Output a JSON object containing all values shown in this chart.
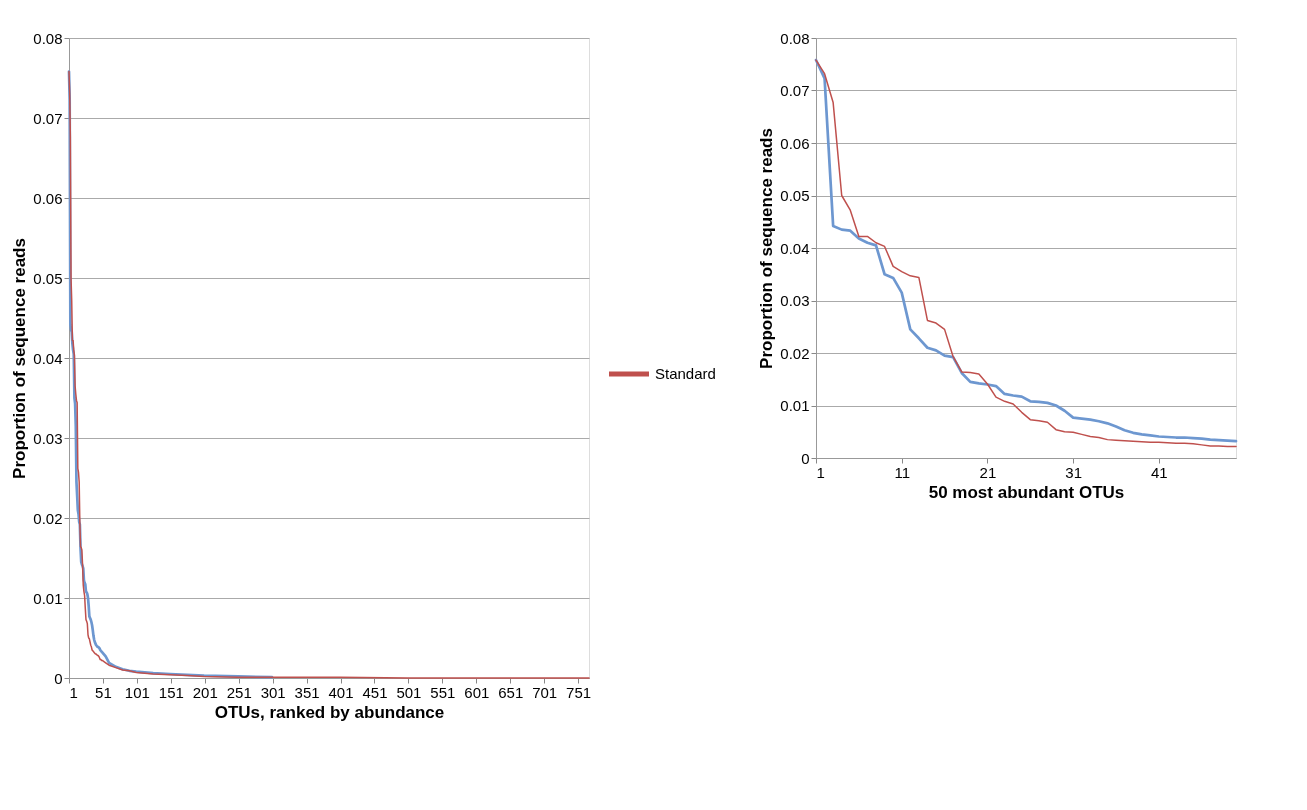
{
  "chart_data": [
    {
      "type": "line",
      "xlabel": "OTUs, ranked by abundance",
      "ylabel": "Proportion of sequence reads",
      "xlim": [
        1,
        767
      ],
      "xticks": [
        1,
        51,
        101,
        151,
        201,
        251,
        301,
        351,
        401,
        451,
        501,
        551,
        601,
        651,
        701,
        751
      ],
      "ylim": [
        0,
        0.08
      ],
      "yticks": [
        0,
        0.01,
        0.02,
        0.03,
        0.04,
        0.05,
        0.06,
        0.07,
        0.08
      ],
      "grid": "y",
      "legend": "right",
      "series": [
        {
          "color": "#6d97d0",
          "x": [
            1,
            2,
            3,
            4,
            5,
            6,
            7,
            8,
            9,
            10,
            11,
            12,
            13,
            14,
            15,
            16,
            17,
            18,
            19,
            20,
            21,
            22,
            23,
            24,
            25,
            26,
            27,
            28,
            29,
            30,
            31,
            32,
            33,
            34,
            35,
            36,
            37,
            38,
            39,
            40,
            41,
            42,
            43,
            44,
            45,
            46,
            47,
            48,
            49,
            50,
            55,
            60,
            70,
            80,
            90,
            100,
            125,
            150,
            175,
            200,
            250,
            300
          ],
          "values": [
            0.0758,
            0.0723,
            0.0442,
            0.0435,
            0.0433,
            0.0418,
            0.041,
            0.0405,
            0.035,
            0.0343,
            0.0315,
            0.0245,
            0.0228,
            0.021,
            0.0205,
            0.0195,
            0.0192,
            0.0162,
            0.0145,
            0.0142,
            0.014,
            0.0137,
            0.0122,
            0.0119,
            0.0117,
            0.0108,
            0.0107,
            0.0105,
            0.01,
            0.009,
            0.0077,
            0.0075,
            0.0073,
            0.007,
            0.0066,
            0.006,
            0.0053,
            0.0048,
            0.0045,
            0.0043,
            0.0041,
            0.004,
            0.0039,
            0.0039,
            0.0038,
            0.0037,
            0.0035,
            0.0034,
            0.0033,
            0.0032,
            0.0027,
            0.0019,
            0.0014,
            0.0011,
            0.0009,
            0.0008,
            0.0006,
            0.0005,
            0.0004,
            0.0003,
            0.0002,
            0.0001
          ]
        },
        {
          "name": "Standard",
          "color": "#bf504d",
          "x": [
            1,
            2,
            3,
            4,
            5,
            6,
            7,
            8,
            9,
            10,
            11,
            12,
            13,
            14,
            15,
            16,
            17,
            18,
            19,
            20,
            21,
            22,
            23,
            24,
            25,
            26,
            27,
            28,
            29,
            30,
            31,
            32,
            33,
            34,
            35,
            36,
            37,
            38,
            39,
            40,
            41,
            42,
            43,
            44,
            45,
            46,
            47,
            48,
            49,
            50,
            55,
            60,
            70,
            80,
            90,
            100,
            125,
            150,
            175,
            200,
            250,
            300,
            400,
            500,
            600,
            700,
            767
          ],
          "values": [
            0.0758,
            0.0732,
            0.0677,
            0.05,
            0.0472,
            0.0422,
            0.0422,
            0.041,
            0.0403,
            0.0365,
            0.0355,
            0.0347,
            0.0344,
            0.0262,
            0.0257,
            0.0245,
            0.0193,
            0.0164,
            0.0163,
            0.016,
            0.0141,
            0.0116,
            0.0108,
            0.0103,
            0.0087,
            0.0073,
            0.0071,
            0.0068,
            0.0054,
            0.005,
            0.0049,
            0.0045,
            0.0041,
            0.0039,
            0.0035,
            0.0034,
            0.0033,
            0.0032,
            0.0031,
            0.003,
            0.003,
            0.0029,
            0.0028,
            0.0028,
            0.0027,
            0.0025,
            0.0023,
            0.0023,
            0.0022,
            0.0022,
            0.0019,
            0.0016,
            0.0013,
            0.001,
            0.0009,
            0.0007,
            0.0005,
            0.0004,
            0.0003,
            0.0002,
            0.0001,
            0.0001,
            0.0001,
            0,
            0,
            0,
            0
          ]
        }
      ]
    },
    {
      "type": "line",
      "xlabel": "50 most abundant OTUs",
      "ylabel": "Proportion of sequence reads",
      "xlim": [
        1,
        50
      ],
      "xticks": [
        1,
        11,
        21,
        31,
        41
      ],
      "ylim": [
        0,
        0.08
      ],
      "yticks": [
        0,
        0.01,
        0.02,
        0.03,
        0.04,
        0.05,
        0.06,
        0.07,
        0.08
      ],
      "grid": "y",
      "x": [
        1,
        2,
        3,
        4,
        5,
        6,
        7,
        8,
        9,
        10,
        11,
        12,
        13,
        14,
        15,
        16,
        17,
        18,
        19,
        20,
        21,
        22,
        23,
        24,
        25,
        26,
        27,
        28,
        29,
        30,
        31,
        32,
        33,
        34,
        35,
        36,
        37,
        38,
        39,
        40,
        41,
        42,
        43,
        44,
        45,
        46,
        47,
        48,
        49,
        50
      ],
      "series": [
        {
          "color": "#6d97d0",
          "values": [
            0.0758,
            0.0723,
            0.0442,
            0.0435,
            0.0433,
            0.0418,
            0.041,
            0.0405,
            0.035,
            0.0343,
            0.0315,
            0.0245,
            0.0228,
            0.021,
            0.0205,
            0.0195,
            0.0192,
            0.0162,
            0.0145,
            0.0142,
            0.014,
            0.0137,
            0.0122,
            0.0119,
            0.0117,
            0.0108,
            0.0107,
            0.0105,
            0.01,
            0.009,
            0.0077,
            0.0075,
            0.0073,
            0.007,
            0.0066,
            0.006,
            0.0053,
            0.0048,
            0.0045,
            0.0043,
            0.0041,
            0.004,
            0.0039,
            0.0039,
            0.0038,
            0.0037,
            0.0035,
            0.0034,
            0.0033,
            0.0032
          ]
        },
        {
          "color": "#bf504d",
          "values": [
            0.0758,
            0.0732,
            0.0677,
            0.05,
            0.0472,
            0.0422,
            0.0422,
            0.041,
            0.0403,
            0.0365,
            0.0355,
            0.0347,
            0.0344,
            0.0262,
            0.0257,
            0.0245,
            0.0193,
            0.0164,
            0.0163,
            0.016,
            0.0141,
            0.0116,
            0.0108,
            0.0103,
            0.0087,
            0.0073,
            0.0071,
            0.0068,
            0.0054,
            0.005,
            0.0049,
            0.0045,
            0.0041,
            0.0039,
            0.0035,
            0.0034,
            0.0033,
            0.0032,
            0.0031,
            0.003,
            0.003,
            0.0029,
            0.0028,
            0.0028,
            0.0027,
            0.0025,
            0.0023,
            0.0023,
            0.0022,
            0.0022
          ]
        }
      ]
    }
  ]
}
